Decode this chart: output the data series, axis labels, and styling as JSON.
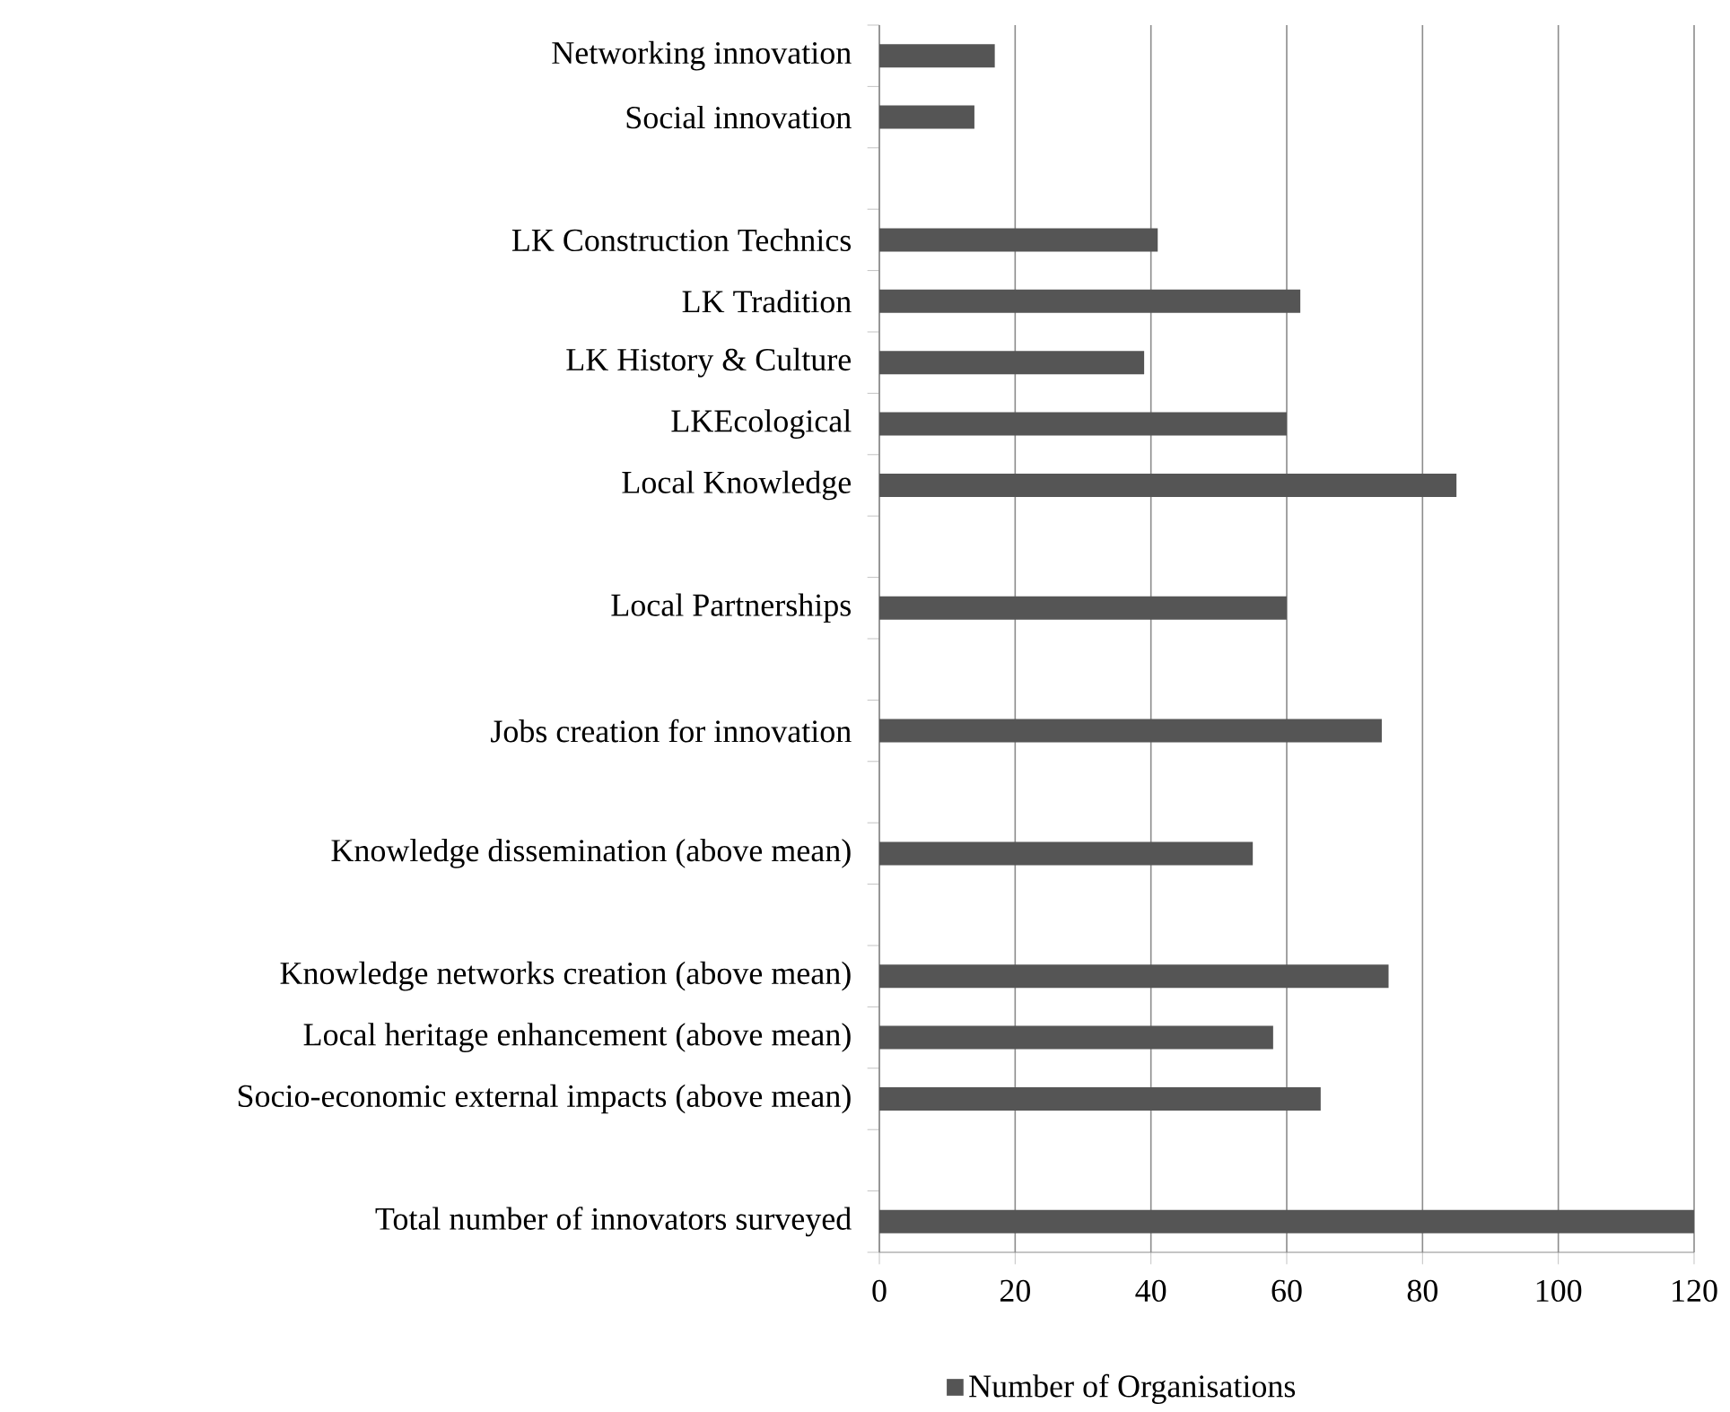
{
  "chart_data": {
    "type": "bar",
    "orientation": "horizontal",
    "categories": [
      "Networking innovation",
      "Social innovation",
      null,
      "LK Construction Technics",
      "LK Tradition",
      "LK History & Culture",
      "LKEcological",
      "Local Knowledge",
      null,
      "Local Partnerships",
      null,
      "Jobs creation for innovation",
      null,
      "Knowledge dissemination (above mean)",
      null,
      "Knowledge networks creation (above mean)",
      "Local heritage enhancement (above mean)",
      "Socio-economic external impacts (above mean)",
      null,
      "Total number of innovators surveyed"
    ],
    "series": [
      {
        "name": "Number of Organisations",
        "color": "#555555",
        "values": [
          17,
          14,
          null,
          41,
          62,
          39,
          60,
          85,
          null,
          60,
          null,
          74,
          null,
          55,
          null,
          75,
          58,
          65,
          null,
          120
        ]
      }
    ],
    "xlim": [
      0,
      120
    ],
    "xticks": [
      0,
      20,
      40,
      60,
      80,
      100,
      120
    ],
    "grid": "x",
    "legend": "bottom"
  }
}
